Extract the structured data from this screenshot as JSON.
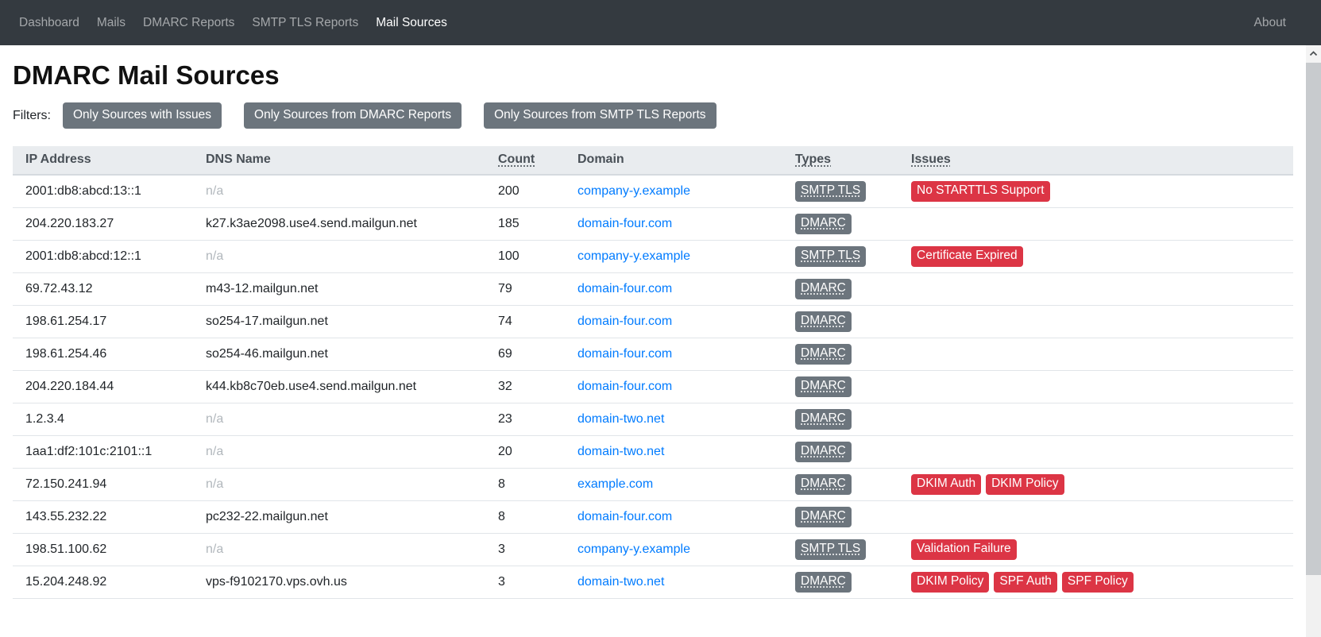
{
  "navbar": {
    "items": [
      {
        "label": "Dashboard",
        "active": false
      },
      {
        "label": "Mails",
        "active": false
      },
      {
        "label": "DMARC Reports",
        "active": false
      },
      {
        "label": "SMTP TLS Reports",
        "active": false
      },
      {
        "label": "Mail Sources",
        "active": true
      }
    ],
    "right_items": [
      {
        "label": "About",
        "active": false
      }
    ]
  },
  "page": {
    "title": "DMARC Mail Sources",
    "filters_label": "Filters:",
    "filter_buttons": [
      "Only Sources with Issues",
      "Only Sources from DMARC Reports",
      "Only Sources from SMTP TLS Reports"
    ]
  },
  "table": {
    "columns": [
      {
        "label": "IP Address",
        "underlined": false
      },
      {
        "label": "DNS Name",
        "underlined": false
      },
      {
        "label": "Count",
        "underlined": true
      },
      {
        "label": "Domain",
        "underlined": false
      },
      {
        "label": "Types",
        "underlined": true
      },
      {
        "label": "Issues",
        "underlined": true
      }
    ],
    "rows": [
      {
        "ip": "2001:db8:abcd:13::1",
        "dns": "n/a",
        "count": "200",
        "domain": "company-y.example",
        "types": [
          "SMTP TLS"
        ],
        "issues": [
          "No STARTTLS Support"
        ]
      },
      {
        "ip": "204.220.183.27",
        "dns": "k27.k3ae2098.use4.send.mailgun.net",
        "count": "185",
        "domain": "domain-four.com",
        "types": [
          "DMARC"
        ],
        "issues": []
      },
      {
        "ip": "2001:db8:abcd:12::1",
        "dns": "n/a",
        "count": "100",
        "domain": "company-y.example",
        "types": [
          "SMTP TLS"
        ],
        "issues": [
          "Certificate Expired"
        ]
      },
      {
        "ip": "69.72.43.12",
        "dns": "m43-12.mailgun.net",
        "count": "79",
        "domain": "domain-four.com",
        "types": [
          "DMARC"
        ],
        "issues": []
      },
      {
        "ip": "198.61.254.17",
        "dns": "so254-17.mailgun.net",
        "count": "74",
        "domain": "domain-four.com",
        "types": [
          "DMARC"
        ],
        "issues": []
      },
      {
        "ip": "198.61.254.46",
        "dns": "so254-46.mailgun.net",
        "count": "69",
        "domain": "domain-four.com",
        "types": [
          "DMARC"
        ],
        "issues": []
      },
      {
        "ip": "204.220.184.44",
        "dns": "k44.kb8c70eb.use4.send.mailgun.net",
        "count": "32",
        "domain": "domain-four.com",
        "types": [
          "DMARC"
        ],
        "issues": []
      },
      {
        "ip": "1.2.3.4",
        "dns": "n/a",
        "count": "23",
        "domain": "domain-two.net",
        "types": [
          "DMARC"
        ],
        "issues": []
      },
      {
        "ip": "1aa1:df2:101c:2101::1",
        "dns": "n/a",
        "count": "20",
        "domain": "domain-two.net",
        "types": [
          "DMARC"
        ],
        "issues": []
      },
      {
        "ip": "72.150.241.94",
        "dns": "n/a",
        "count": "8",
        "domain": "example.com",
        "types": [
          "DMARC"
        ],
        "issues": [
          "DKIM Auth",
          "DKIM Policy"
        ]
      },
      {
        "ip": "143.55.232.22",
        "dns": "pc232-22.mailgun.net",
        "count": "8",
        "domain": "domain-four.com",
        "types": [
          "DMARC"
        ],
        "issues": []
      },
      {
        "ip": "198.51.100.62",
        "dns": "n/a",
        "count": "3",
        "domain": "company-y.example",
        "types": [
          "SMTP TLS"
        ],
        "issues": [
          "Validation Failure"
        ]
      },
      {
        "ip": "15.204.248.92",
        "dns": "vps-f9102170.vps.ovh.us",
        "count": "3",
        "domain": "domain-two.net",
        "types": [
          "DMARC"
        ],
        "issues": [
          "DKIM Policy",
          "SPF Auth",
          "SPF Policy"
        ]
      }
    ],
    "na_placeholder": "n/a"
  },
  "colors": {
    "navbar_bg": "#343a40",
    "navbar_link": "rgba(255,255,255,0.55)",
    "navbar_link_active": "#ffffff",
    "table_header_bg": "#e9ecef",
    "table_header_text": "#495057",
    "row_border": "#e1e5e9",
    "link_blue": "#007bff",
    "badge_type_bg": "#6c757d",
    "badge_issue_bg": "#dc3545",
    "filter_button_bg": "#6c757d",
    "muted_text": "#b1b7bc"
  }
}
